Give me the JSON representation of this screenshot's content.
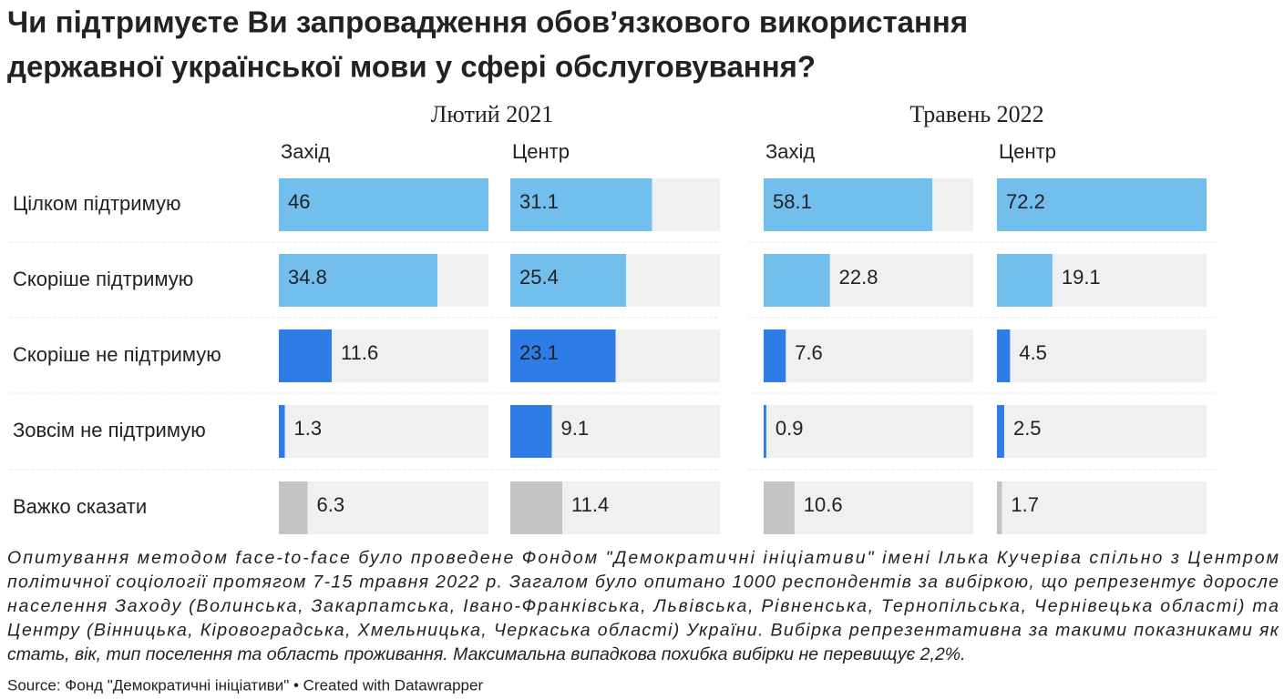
{
  "chart_data": {
    "type": "split-bar",
    "title": [
      "Чи підтримуєте Ви запровадження обов’язкового використання",
      "державної української мови у сфері обслуговування?"
    ],
    "categories": [
      "Цілком підтримую",
      "Скоріше підтримую",
      "Скоріше не підтримую",
      "Зовсім не підтримую",
      "Важко сказати"
    ],
    "colors": [
      "#72bfee",
      "#72bfee",
      "#2e7de6",
      "#2e7de6",
      "#c4c4c4"
    ],
    "groups": [
      {
        "name": "Лютий 2021",
        "xlim": [
          0,
          46
        ],
        "series": [
          {
            "name": "Захід",
            "values": [
              46,
              34.8,
              11.6,
              1.3,
              6.3
            ]
          },
          {
            "name": "Центр",
            "values": [
              31.1,
              25.4,
              23.1,
              9.1,
              11.4
            ]
          }
        ]
      },
      {
        "name": "Травень 2022",
        "xlim": [
          0,
          72.2
        ],
        "series": [
          {
            "name": "Захід",
            "values": [
              58.1,
              22.8,
              7.6,
              0.9,
              10.6
            ]
          },
          {
            "name": "Центр",
            "values": [
              72.2,
              19.1,
              4.5,
              2.5,
              1.7
            ]
          }
        ]
      }
    ],
    "note": [
      "Опитування методом face-to-face було проведене Фондом \"Демократичні ініціативи\" імені Ілька Кучеріва спільно з Центром",
      "політичної соціології протягом 7-15 травня 2022 р. Загалом було опитано 1000 респондентів за вибіркою, що репрезентує доросле",
      "населення Заходу (Волинська, Закарпатська, Івано-Франківська, Львівська, Рівненська, Тернопільська, Чернівецька області) та",
      "Центру (Вінницька, Кіровоградська, Хмельницька, Черкаська області) України. Вибірка репрезентативна за такими показниками як",
      "стать, вік, тип поселення та область проживання. Максимальна випадкова похибка вибірки не перевищує 2,2%."
    ],
    "source": "Source: Фонд \"Демократичні ініціативи\" • Created with Datawrapper"
  }
}
